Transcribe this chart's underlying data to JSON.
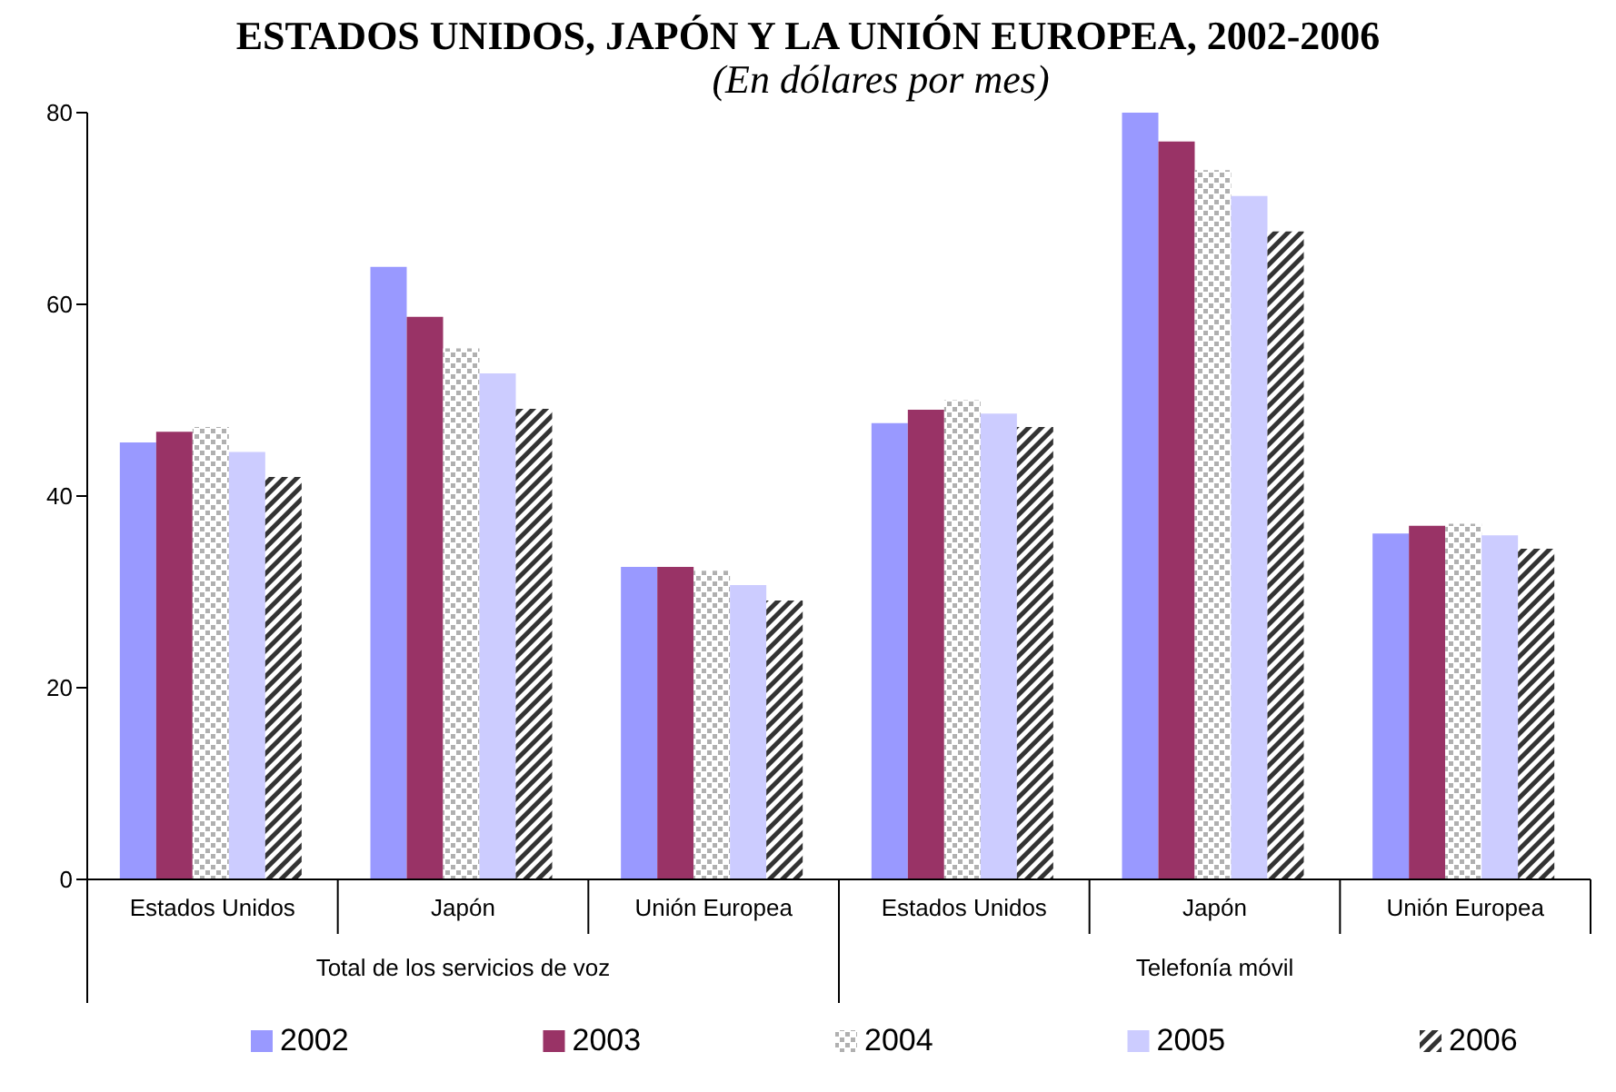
{
  "chart_data": {
    "type": "bar",
    "title": "ESTADOS UNIDOS, JAPÓN Y LA UNIÓN EUROPEA, 2002-2006",
    "subtitle": "(En dólares por mes)",
    "categories": [
      "Estados Unidos",
      "Japón",
      "Unión Europea",
      "Estados Unidos",
      "Japón",
      "Unión Europea"
    ],
    "series": [
      {
        "name": "2002",
        "color": "#9999ff",
        "values": [
          45.6,
          63.9,
          32.6,
          47.6,
          80.0,
          36.1
        ]
      },
      {
        "name": "2003",
        "color": "#993366",
        "values": [
          46.7,
          58.7,
          32.6,
          49.0,
          77.0,
          36.9
        ]
      },
      {
        "name": "2004",
        "color": "#b0b0b0",
        "values": [
          47.2,
          55.4,
          32.2,
          50.0,
          74.0,
          37.1
        ]
      },
      {
        "name": "2005",
        "color": "#ccccff",
        "values": [
          44.6,
          52.8,
          30.7,
          48.6,
          71.3,
          35.9
        ]
      },
      {
        "name": "2006",
        "color": "#333333",
        "values": [
          42.0,
          49.1,
          29.1,
          47.2,
          67.6,
          34.5
        ]
      }
    ],
    "annotations": [
      "Total de los servicios de voz",
      "Telefonía móvil"
    ],
    "ylim": [
      0,
      80
    ],
    "yticks": [
      0,
      20,
      40,
      60,
      80
    ],
    "grid": false,
    "legend": "bottom"
  }
}
